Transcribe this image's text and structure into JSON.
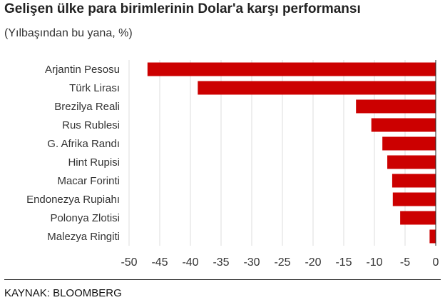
{
  "header": {
    "title": "Gelişen ülke para birimlerinin Dolar'a karşı performansı",
    "subtitle": "(Yılbaşından bu yana, %)"
  },
  "footer": {
    "source": "KAYNAK: BLOOMBERG"
  },
  "colors": {
    "bar": "#cc0000",
    "grid": "#dddddd",
    "axis": "#222222",
    "label": "#333333"
  },
  "chart_data": {
    "type": "bar",
    "orientation": "horizontal",
    "title": "Gelişen ülke para birimlerinin Dolar'a karşı performansı",
    "subtitle": "(Yılbaşından bu yana, %)",
    "categories": [
      "Arjantin Pesosu",
      "Türk Lirası",
      "Brezilya Reali",
      "Rus Rublesi",
      "G. Afrika Randı",
      "Hint Rupisi",
      "Macar Forinti",
      "Endonezya Rupiahı",
      "Polonya Zlotisi",
      "Malezya Ringiti"
    ],
    "values": [
      -47.0,
      -38.8,
      -13.0,
      -10.5,
      -8.7,
      -7.9,
      -7.1,
      -7.0,
      -5.8,
      -1.0
    ],
    "xlim": [
      -50,
      0
    ],
    "xticks": [
      -50,
      -45,
      -40,
      -35,
      -30,
      -25,
      -20,
      -15,
      -10,
      -5,
      0
    ],
    "xlabel": "",
    "ylabel": "",
    "grid": true,
    "legend": "none"
  }
}
